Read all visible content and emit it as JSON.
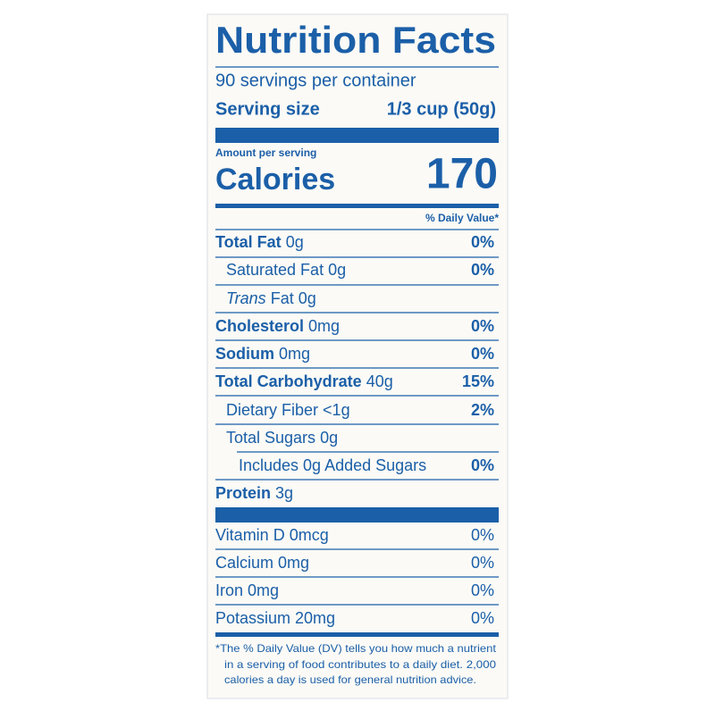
{
  "header": {
    "title": "Nutrition Facts",
    "servings": "90 servings per container",
    "serving_size_label": "Serving size",
    "serving_size_value": "1/3 cup (50g)"
  },
  "calories": {
    "amount_label": "Amount per serving",
    "label": "Calories",
    "value": "170"
  },
  "daily_value_header": "% Daily Value*",
  "nutrients": [
    {
      "name": "Total Fat",
      "amount": "0g",
      "dv": "0%"
    },
    {
      "name": "Saturated Fat",
      "amount": "0g",
      "dv": "0%"
    },
    {
      "name_italic": "Trans",
      "name": "Fat",
      "amount": "0g"
    },
    {
      "name": "Cholesterol",
      "amount": "0mg",
      "dv": "0%"
    },
    {
      "name": "Sodium",
      "amount": "0mg",
      "dv": "0%"
    },
    {
      "name": "Total Carbohydrate",
      "amount": "40g",
      "dv": "15%"
    },
    {
      "name": "Dietary Fiber",
      "amount": "<1g",
      "dv": "2%"
    },
    {
      "name": "Total Sugars",
      "amount": "0g"
    },
    {
      "text": "Includes 0g Added Sugars",
      "dv": "0%"
    },
    {
      "name": "Protein",
      "amount": "3g"
    }
  ],
  "vitamins": [
    {
      "name": "Vitamin D 0mcg",
      "dv": "0%"
    },
    {
      "name": "Calcium 0mg",
      "dv": "0%"
    },
    {
      "name": "Iron 0mg",
      "dv": "0%"
    },
    {
      "name": "Potassium 20mg",
      "dv": "0%"
    }
  ],
  "footnote": [
    "*The % Daily Value (DV) tells you how much a nutrient",
    "in a serving of food contributes to a daily diet. 2,000",
    "calories a day is used for general nutrition advice."
  ]
}
